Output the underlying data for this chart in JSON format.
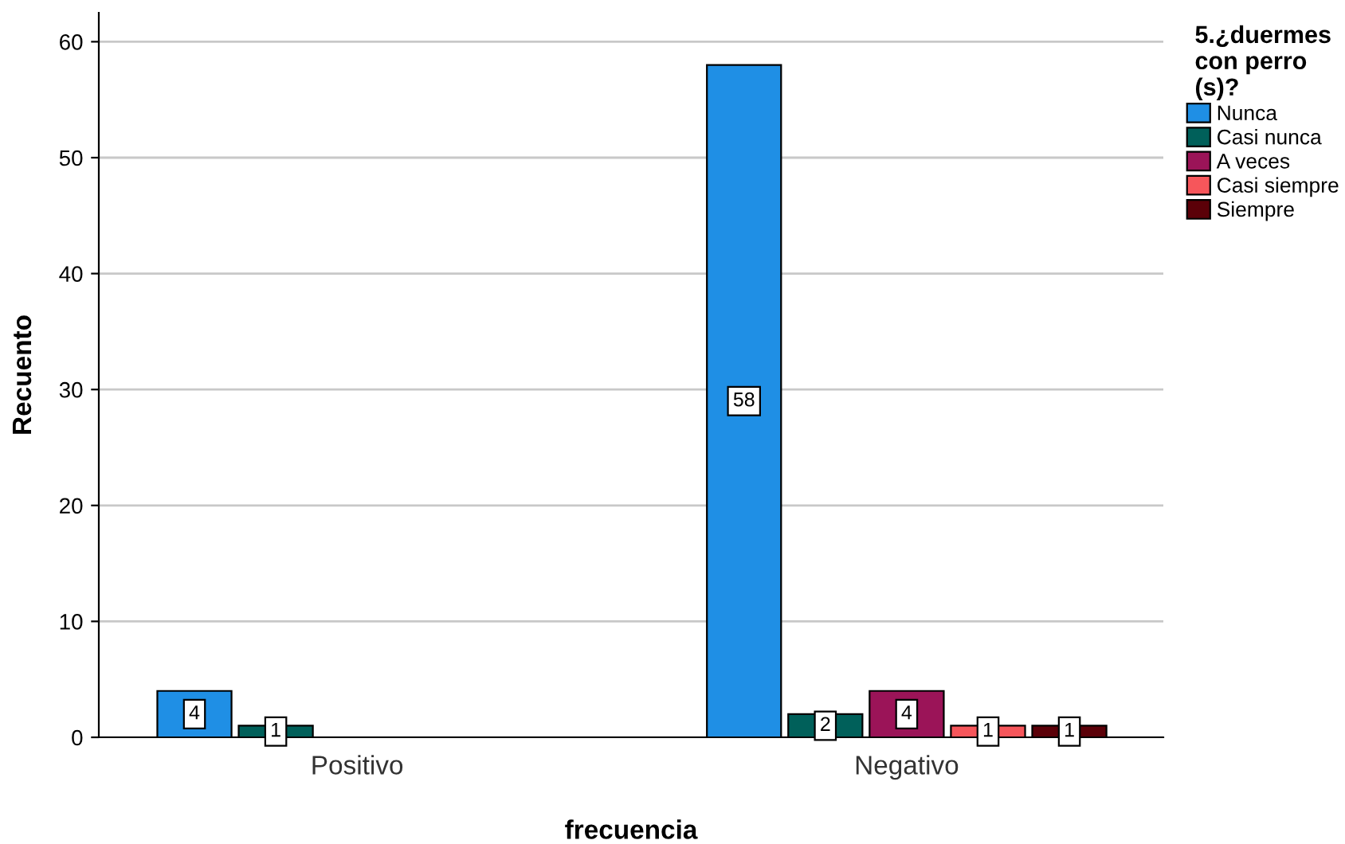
{
  "chart_data": {
    "type": "bar",
    "xlabel": "frecuencia",
    "ylabel": "Recuento",
    "legend_title": "5.¿duermes con perro (s)?",
    "categories": [
      "Positivo",
      "Negativo"
    ],
    "series": [
      {
        "name": "Nunca",
        "color": "#1f8fe5",
        "values": [
          4,
          58
        ]
      },
      {
        "name": "Casi nunca",
        "color": "#00605a",
        "values": [
          1,
          2
        ]
      },
      {
        "name": "A veces",
        "color": "#9b1458",
        "values": [
          null,
          4
        ]
      },
      {
        "name": "Casi siempre",
        "color": "#f6565b",
        "values": [
          null,
          1
        ]
      },
      {
        "name": "Siempre",
        "color": "#5b0008",
        "values": [
          null,
          1
        ]
      }
    ],
    "ylim": [
      0,
      62.5
    ],
    "yticks": [
      0,
      10,
      20,
      30,
      40,
      50,
      60
    ],
    "grid": "y",
    "legend": "top right",
    "data_labels": true
  }
}
